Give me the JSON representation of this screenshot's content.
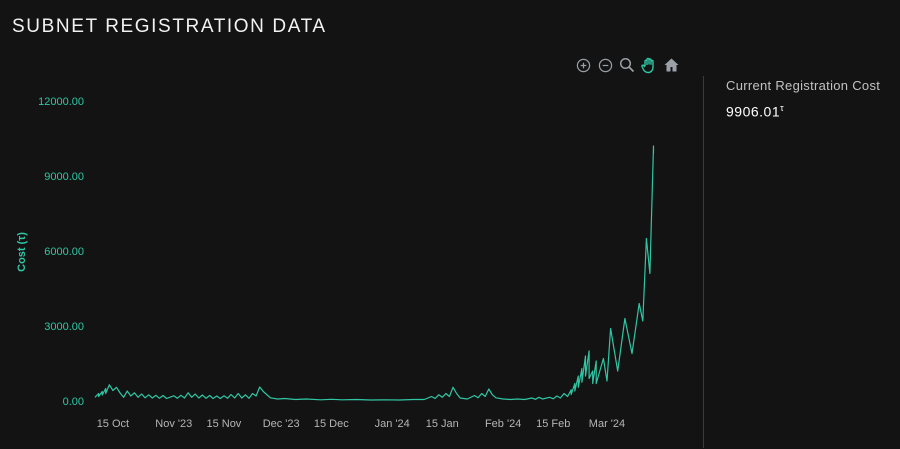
{
  "page": {
    "title": "SUBNET REGISTRATION DATA"
  },
  "side_panel": {
    "label": "Current Registration Cost",
    "value": "9906.01",
    "unit_symbol": "τ"
  },
  "toolbar": {
    "tools": [
      "zoom-in-icon",
      "zoom-out-icon",
      "magnifier-icon",
      "pan-hand-icon",
      "home-icon"
    ]
  },
  "colors": {
    "background": "#131313",
    "line": "#2fc7a4",
    "y_tick": "#2fc7a4",
    "x_tick": "#b5b5b5",
    "toolbar_icon": "#9aa0a6",
    "toolbar_active": "#2fc7a4"
  },
  "chart_data": {
    "type": "line",
    "title": "",
    "xlabel": "",
    "ylabel": "Cost (τ)",
    "ylim": [
      0,
      12000
    ],
    "y_ticks": [
      0,
      3000,
      6000,
      9000,
      12000
    ],
    "y_tick_labels": [
      "0.00",
      "3000.00",
      "6000.00",
      "9000.00",
      "12000.00"
    ],
    "x_ticks": [
      {
        "date": "2023-10-15",
        "label": "15 Oct"
      },
      {
        "date": "2023-11-01",
        "label": "Nov '23"
      },
      {
        "date": "2023-11-15",
        "label": "15 Nov"
      },
      {
        "date": "2023-12-01",
        "label": "Dec '23"
      },
      {
        "date": "2023-12-15",
        "label": "15 Dec"
      },
      {
        "date": "2024-01-01",
        "label": "Jan '24"
      },
      {
        "date": "2024-01-15",
        "label": "15 Jan"
      },
      {
        "date": "2024-02-01",
        "label": "Feb '24"
      },
      {
        "date": "2024-02-15",
        "label": "15 Feb"
      },
      {
        "date": "2024-03-01",
        "label": "Mar '24"
      }
    ],
    "xlim": [
      "2023-10-10",
      "2024-03-20"
    ],
    "grid": false,
    "series": [
      {
        "values": [
          [
            "2023-10-10",
            150
          ],
          [
            "2023-10-11",
            300
          ],
          [
            "2023-10-11",
            180
          ],
          [
            "2023-10-12",
            380
          ],
          [
            "2023-10-12",
            240
          ],
          [
            "2023-10-13",
            500
          ],
          [
            "2023-10-13",
            300
          ],
          [
            "2023-10-14",
            650
          ],
          [
            "2023-10-15",
            420
          ],
          [
            "2023-10-16",
            550
          ],
          [
            "2023-10-17",
            320
          ],
          [
            "2023-10-18",
            150
          ],
          [
            "2023-10-19",
            400
          ],
          [
            "2023-10-20",
            200
          ],
          [
            "2023-10-21",
            330
          ],
          [
            "2023-10-22",
            150
          ],
          [
            "2023-10-23",
            280
          ],
          [
            "2023-10-24",
            130
          ],
          [
            "2023-10-25",
            250
          ],
          [
            "2023-10-26",
            120
          ],
          [
            "2023-10-27",
            230
          ],
          [
            "2023-10-28",
            110
          ],
          [
            "2023-10-29",
            220
          ],
          [
            "2023-10-30",
            100
          ],
          [
            "2023-11-01",
            210
          ],
          [
            "2023-11-02",
            110
          ],
          [
            "2023-11-03",
            230
          ],
          [
            "2023-11-04",
            120
          ],
          [
            "2023-11-05",
            330
          ],
          [
            "2023-11-06",
            150
          ],
          [
            "2023-11-07",
            280
          ],
          [
            "2023-11-08",
            120
          ],
          [
            "2023-11-09",
            240
          ],
          [
            "2023-11-10",
            110
          ],
          [
            "2023-11-11",
            220
          ],
          [
            "2023-11-12",
            100
          ],
          [
            "2023-11-13",
            200
          ],
          [
            "2023-11-14",
            100
          ],
          [
            "2023-11-15",
            210
          ],
          [
            "2023-11-16",
            110
          ],
          [
            "2023-11-17",
            260
          ],
          [
            "2023-11-18",
            120
          ],
          [
            "2023-11-19",
            300
          ],
          [
            "2023-11-20",
            120
          ],
          [
            "2023-11-21",
            250
          ],
          [
            "2023-11-22",
            110
          ],
          [
            "2023-11-23",
            300
          ],
          [
            "2023-11-24",
            200
          ],
          [
            "2023-11-25",
            560
          ],
          [
            "2023-11-26",
            380
          ],
          [
            "2023-11-28",
            130
          ],
          [
            "2023-11-30",
            80
          ],
          [
            "2023-12-02",
            100
          ],
          [
            "2023-12-05",
            60
          ],
          [
            "2023-12-08",
            80
          ],
          [
            "2023-12-12",
            50
          ],
          [
            "2023-12-15",
            70
          ],
          [
            "2023-12-18",
            50
          ],
          [
            "2023-12-22",
            60
          ],
          [
            "2023-12-26",
            40
          ],
          [
            "2023-12-30",
            50
          ],
          [
            "2024-01-03",
            40
          ],
          [
            "2024-01-07",
            60
          ],
          [
            "2024-01-10",
            60
          ],
          [
            "2024-01-12",
            180
          ],
          [
            "2024-01-13",
            100
          ],
          [
            "2024-01-14",
            250
          ],
          [
            "2024-01-15",
            150
          ],
          [
            "2024-01-16",
            300
          ],
          [
            "2024-01-17",
            180
          ],
          [
            "2024-01-18",
            550
          ],
          [
            "2024-01-19",
            300
          ],
          [
            "2024-01-20",
            120
          ],
          [
            "2024-01-22",
            80
          ],
          [
            "2024-01-24",
            220
          ],
          [
            "2024-01-25",
            130
          ],
          [
            "2024-01-26",
            300
          ],
          [
            "2024-01-27",
            180
          ],
          [
            "2024-01-28",
            480
          ],
          [
            "2024-01-29",
            250
          ],
          [
            "2024-01-30",
            130
          ],
          [
            "2024-02-01",
            80
          ],
          [
            "2024-02-03",
            60
          ],
          [
            "2024-02-05",
            80
          ],
          [
            "2024-02-07",
            60
          ],
          [
            "2024-02-09",
            120
          ],
          [
            "2024-02-10",
            70
          ],
          [
            "2024-02-11",
            150
          ],
          [
            "2024-02-12",
            80
          ],
          [
            "2024-02-14",
            150
          ],
          [
            "2024-02-15",
            90
          ],
          [
            "2024-02-16",
            200
          ],
          [
            "2024-02-17",
            120
          ],
          [
            "2024-02-18",
            300
          ],
          [
            "2024-02-19",
            180
          ],
          [
            "2024-02-20",
            450
          ],
          [
            "2024-02-20",
            260
          ],
          [
            "2024-02-21",
            700
          ],
          [
            "2024-02-21",
            400
          ],
          [
            "2024-02-22",
            1000
          ],
          [
            "2024-02-22",
            550
          ],
          [
            "2024-02-23",
            1300
          ],
          [
            "2024-02-23",
            750
          ],
          [
            "2024-02-24",
            1800
          ],
          [
            "2024-02-24",
            1000
          ],
          [
            "2024-02-25",
            2000
          ],
          [
            "2024-02-25",
            900
          ],
          [
            "2024-02-26",
            1200
          ],
          [
            "2024-02-26",
            700
          ],
          [
            "2024-02-27",
            1600
          ],
          [
            "2024-02-27",
            700
          ],
          [
            "2024-02-29",
            1700
          ],
          [
            "2024-03-01",
            800
          ],
          [
            "2024-03-02",
            2900
          ],
          [
            "2024-03-04",
            1200
          ],
          [
            "2024-03-06",
            3300
          ],
          [
            "2024-03-08",
            1900
          ],
          [
            "2024-03-10",
            3900
          ],
          [
            "2024-03-11",
            3200
          ],
          [
            "2024-03-12",
            6500
          ],
          [
            "2024-03-13",
            5100
          ],
          [
            "2024-03-14",
            10200
          ],
          [
            "2024-03-14",
            9906
          ]
        ]
      }
    ]
  }
}
